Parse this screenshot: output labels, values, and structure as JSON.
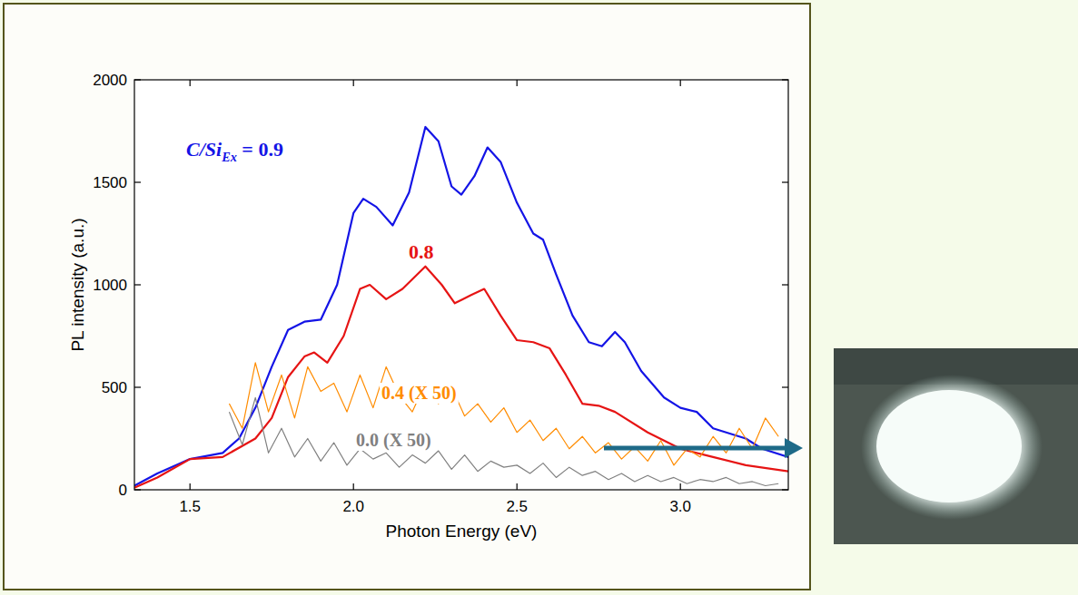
{
  "chart_data": {
    "type": "line",
    "x_label": "Photon Energy (eV)",
    "y_label": "PL intensity (a.u.)",
    "label_prefix": "C/Si",
    "label_subscript": "Ex",
    "label_joiner": " = ",
    "xlim": [
      1.33,
      3.33
    ],
    "ylim": [
      0,
      2000
    ],
    "xticks": [
      1.5,
      {
        "value": 2,
        "label": "2.0"
      },
      2.5,
      {
        "value": 3,
        "label": "3.0"
      }
    ],
    "yticks": [
      0,
      500,
      1000,
      1500,
      2000
    ],
    "grid": false,
    "series": [
      {
        "name": "0.9",
        "color": "#1414e6",
        "line_style": "solid",
        "x": [
          1.33,
          1.4,
          1.5,
          1.6,
          1.65,
          1.7,
          1.75,
          1.8,
          1.85,
          1.9,
          1.95,
          2.0,
          2.03,
          2.07,
          2.12,
          2.17,
          2.22,
          2.26,
          2.3,
          2.33,
          2.37,
          2.41,
          2.45,
          2.5,
          2.55,
          2.58,
          2.62,
          2.67,
          2.72,
          2.76,
          2.8,
          2.83,
          2.88,
          2.95,
          3.0,
          3.05,
          3.1,
          3.2,
          3.25,
          3.33
        ],
        "values": [
          20,
          80,
          150,
          180,
          250,
          400,
          600,
          780,
          820,
          830,
          1000,
          1350,
          1420,
          1380,
          1290,
          1450,
          1770,
          1700,
          1480,
          1440,
          1530,
          1670,
          1600,
          1400,
          1250,
          1220,
          1050,
          850,
          720,
          700,
          770,
          720,
          580,
          450,
          400,
          380,
          300,
          250,
          200,
          160
        ]
      },
      {
        "name": "0.8",
        "color": "#e61414",
        "line_style": "solid",
        "x": [
          1.33,
          1.4,
          1.5,
          1.6,
          1.7,
          1.75,
          1.8,
          1.85,
          1.88,
          1.92,
          1.97,
          2.02,
          2.05,
          2.1,
          2.15,
          2.22,
          2.27,
          2.31,
          2.36,
          2.4,
          2.45,
          2.5,
          2.55,
          2.6,
          2.65,
          2.7,
          2.75,
          2.8,
          2.9,
          3.0,
          3.1,
          3.2,
          3.33
        ],
        "values": [
          10,
          60,
          150,
          160,
          250,
          350,
          550,
          650,
          670,
          620,
          750,
          980,
          1000,
          930,
          980,
          1090,
          1000,
          910,
          950,
          980,
          850,
          730,
          720,
          690,
          560,
          420,
          410,
          380,
          280,
          200,
          160,
          120,
          90
        ]
      },
      {
        "name": "0.4 (X 50)",
        "color": "#ff8c00",
        "line_style": "solid",
        "x": [
          1.62,
          1.66,
          1.7,
          1.74,
          1.78,
          1.82,
          1.86,
          1.9,
          1.94,
          1.98,
          2.02,
          2.06,
          2.1,
          2.14,
          2.18,
          2.22,
          2.26,
          2.3,
          2.34,
          2.38,
          2.42,
          2.46,
          2.5,
          2.54,
          2.58,
          2.62,
          2.66,
          2.7,
          2.74,
          2.78,
          2.82,
          2.86,
          2.9,
          2.94,
          2.98,
          3.02,
          3.06,
          3.1,
          3.14,
          3.18,
          3.22,
          3.26,
          3.3
        ],
        "values": [
          420,
          300,
          620,
          380,
          560,
          350,
          600,
          480,
          520,
          380,
          560,
          400,
          600,
          460,
          380,
          520,
          420,
          500,
          360,
          420,
          330,
          400,
          280,
          340,
          240,
          300,
          200,
          260,
          180,
          230,
          150,
          210,
          140,
          240,
          120,
          200,
          160,
          260,
          180,
          300,
          200,
          350,
          260
        ]
      },
      {
        "name": "0.0 (X 50)",
        "color": "#808080",
        "line_style": "solid",
        "x": [
          1.62,
          1.66,
          1.7,
          1.74,
          1.78,
          1.82,
          1.86,
          1.9,
          1.94,
          1.98,
          2.02,
          2.06,
          2.1,
          2.14,
          2.18,
          2.22,
          2.26,
          2.3,
          2.34,
          2.38,
          2.42,
          2.46,
          2.5,
          2.54,
          2.58,
          2.62,
          2.66,
          2.7,
          2.74,
          2.78,
          2.82,
          2.86,
          2.9,
          2.94,
          2.98,
          3.02,
          3.06,
          3.1,
          3.14,
          3.18,
          3.22,
          3.26,
          3.3
        ],
        "values": [
          380,
          220,
          450,
          180,
          300,
          160,
          250,
          140,
          230,
          120,
          200,
          150,
          180,
          110,
          170,
          130,
          190,
          100,
          170,
          90,
          140,
          110,
          120,
          80,
          130,
          60,
          110,
          70,
          90,
          50,
          80,
          40,
          70,
          40,
          60,
          30,
          50,
          40,
          60,
          30,
          40,
          20,
          30
        ]
      }
    ]
  }
}
